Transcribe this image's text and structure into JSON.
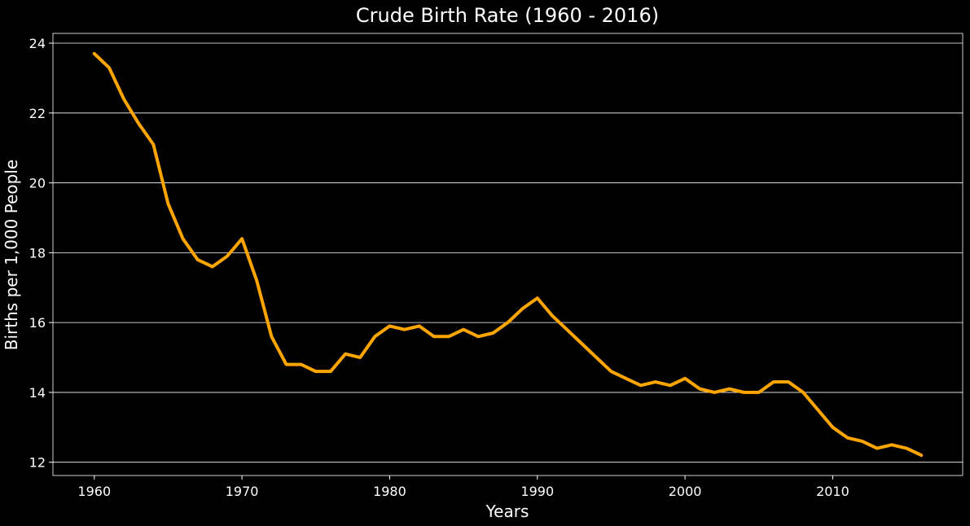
{
  "colors": {
    "background": "#000000",
    "line": "#FFA500",
    "grid": "#ffffff",
    "text": "#ffffff"
  },
  "chart_data": {
    "type": "line",
    "title": "Crude Birth Rate (1960 - 2016)",
    "xlabel": "Years",
    "ylabel": "Births per 1,000 People",
    "xlim": [
      1957.2,
      2018.8
    ],
    "ylim": [
      11.62,
      24.28
    ],
    "xticks": [
      "1960",
      "1970",
      "1980",
      "1990",
      "2000",
      "2010"
    ],
    "yticks": [
      "12",
      "14",
      "16",
      "18",
      "20",
      "22",
      "24"
    ],
    "grid": "horizontal",
    "legend": "none",
    "series": [
      {
        "x": [
          1960,
          1961,
          1962,
          1963,
          1964,
          1965,
          1966,
          1967,
          1968,
          1969,
          1970,
          1971,
          1972,
          1973,
          1974,
          1975,
          1976,
          1977,
          1978,
          1979,
          1980,
          1981,
          1982,
          1983,
          1984,
          1985,
          1986,
          1987,
          1988,
          1989,
          1990,
          1991,
          1992,
          1993,
          1994,
          1995,
          1996,
          1997,
          1998,
          1999,
          2000,
          2001,
          2002,
          2003,
          2004,
          2005,
          2006,
          2007,
          2008,
          2009,
          2010,
          2011,
          2012,
          2013,
          2014,
          2015,
          2016
        ],
        "y": [
          23.7,
          23.3,
          22.4,
          21.7,
          21.1,
          19.4,
          18.4,
          17.8,
          17.6,
          17.9,
          18.4,
          17.2,
          15.6,
          14.8,
          14.8,
          14.6,
          14.6,
          15.1,
          15.0,
          15.6,
          15.9,
          15.8,
          15.9,
          15.6,
          15.6,
          15.8,
          15.6,
          15.7,
          16.0,
          16.4,
          16.7,
          16.2,
          15.8,
          15.4,
          15.0,
          14.6,
          14.4,
          14.2,
          14.3,
          14.2,
          14.4,
          14.1,
          14.0,
          14.1,
          14.0,
          14.0,
          14.3,
          14.3,
          14.0,
          13.5,
          13.0,
          12.7,
          12.6,
          12.4,
          12.5,
          12.4,
          12.2
        ]
      }
    ]
  }
}
